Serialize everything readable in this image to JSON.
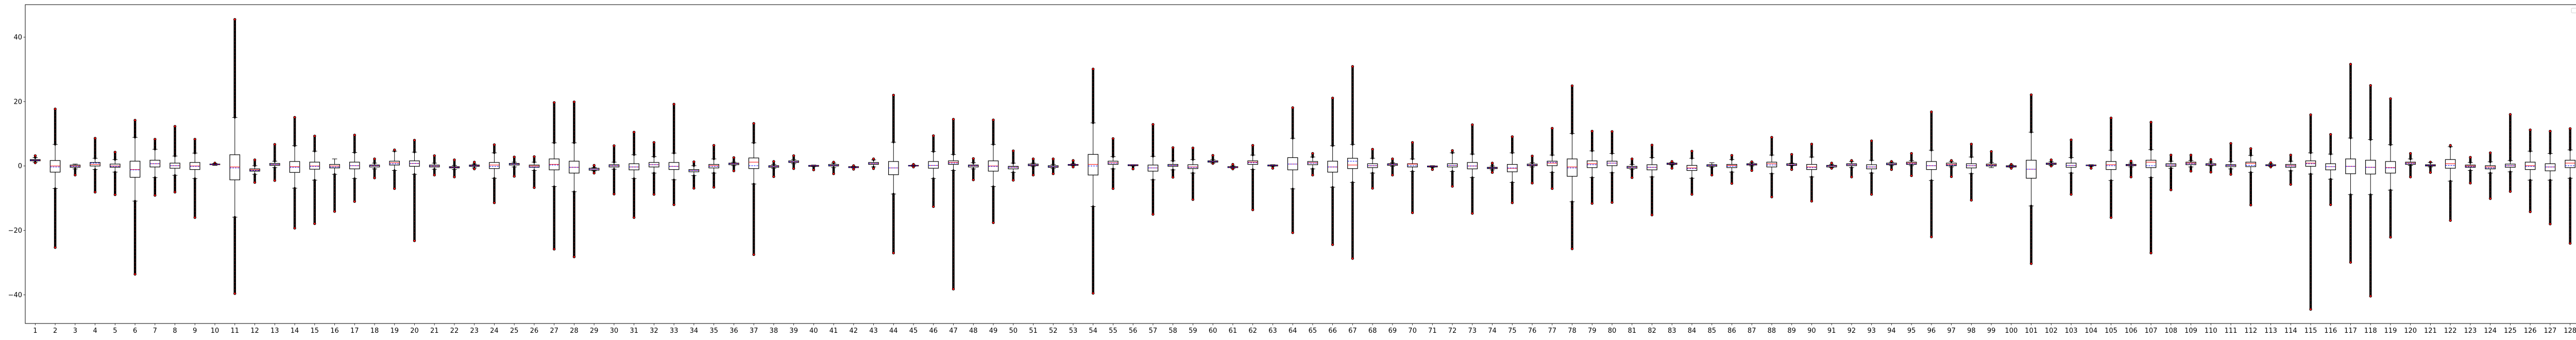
{
  "chart_data": {
    "type": "box",
    "title": "",
    "xlabel": "",
    "ylabel": "",
    "ylim": [
      -48.9,
      50.1
    ],
    "xlim": [
      0.5,
      128.5
    ],
    "yticks": [
      -40,
      -20,
      0,
      20,
      40
    ],
    "ytick_labels": [
      "−40",
      "−20",
      "0",
      "20",
      "40"
    ],
    "grid": false,
    "legend": {
      "placement": "top-right",
      "entries": []
    },
    "colors": {
      "box": "#000000",
      "median": "#ff0000",
      "mean": "#0000ff",
      "flier_edge": "#000000",
      "flier_face": "#ff0000"
    },
    "fields": [
      "min",
      "whisker_low",
      "q1",
      "median",
      "mean",
      "q3",
      "whisker_high",
      "max"
    ],
    "categories": [
      "1",
      "2",
      "3",
      "4",
      "5",
      "6",
      "7",
      "8",
      "9",
      "10",
      "11",
      "12",
      "13",
      "14",
      "15",
      "16",
      "17",
      "18",
      "19",
      "20",
      "21",
      "22",
      "23",
      "24",
      "25",
      "26",
      "27",
      "28",
      "29",
      "30",
      "31",
      "32",
      "33",
      "34",
      "35",
      "36",
      "37",
      "38",
      "39",
      "40",
      "41",
      "42",
      "43",
      "44",
      "45",
      "46",
      "47",
      "48",
      "49",
      "50",
      "51",
      "52",
      "53",
      "54",
      "55",
      "56",
      "57",
      "58",
      "59",
      "60",
      "61",
      "62",
      "63",
      "64",
      "65",
      "66",
      "67",
      "68",
      "69",
      "70",
      "71",
      "72",
      "73",
      "74",
      "75",
      "76",
      "77",
      "78",
      "79",
      "80",
      "81",
      "82",
      "83",
      "84",
      "85",
      "86",
      "87",
      "88",
      "89",
      "90",
      "91",
      "92",
      "93",
      "94",
      "95",
      "96",
      "97",
      "98",
      "99",
      "100",
      "101",
      "102",
      "103",
      "104",
      "105",
      "106",
      "107",
      "108",
      "109",
      "110",
      "111",
      "112",
      "113",
      "114",
      "115",
      "116",
      "117",
      "118",
      "119",
      "120",
      "121",
      "122",
      "123",
      "124",
      "125",
      "126",
      "127",
      "128"
    ],
    "boxes": [
      [
        1.0,
        1.2,
        1.6,
        1.8,
        1.8,
        2.0,
        2.6,
        3.2
      ],
      [
        -25.3,
        -7.0,
        -1.9,
        0,
        -0.3,
        1.7,
        6.7,
        17.7
      ],
      [
        -2.8,
        -0.9,
        -0.4,
        0,
        -0.1,
        0.3,
        0.6,
        0.6
      ],
      [
        -8.1,
        -1.1,
        0,
        0.5,
        0.9,
        1.1,
        2.4,
        8.6
      ],
      [
        -8.9,
        -1.9,
        -0.4,
        0,
        -0.1,
        0.6,
        2.0,
        4.3
      ],
      [
        -33.6,
        -10.9,
        -3.5,
        -1.1,
        -1.2,
        1.5,
        8.9,
        14.2
      ],
      [
        -9.1,
        -3.6,
        -0.3,
        0.7,
        0.7,
        1.8,
        5.2,
        8.3
      ],
      [
        -8.1,
        -2.9,
        -0.7,
        0.1,
        0.1,
        0.9,
        3.1,
        12.3
      ],
      [
        -16.0,
        -3.9,
        -1.1,
        0,
        -0.1,
        1.1,
        4.0,
        8.3
      ],
      [
        0.2,
        0.2,
        0.4,
        0.5,
        0.5,
        0.6,
        0.8,
        0.9
      ],
      [
        -39.6,
        -15.9,
        -4.3,
        -0.3,
        -0.6,
        3.5,
        15.1,
        45.5
      ],
      [
        -5.1,
        -2.6,
        -1.6,
        -1.2,
        -1.4,
        -0.9,
        0.1,
        1.9
      ],
      [
        -4.5,
        -0.5,
        0.2,
        0.5,
        0.5,
        0.8,
        1.5,
        6.7
      ],
      [
        -19.3,
        -6.9,
        -2.0,
        -0.2,
        -0.4,
        1.4,
        6.3,
        15.1
      ],
      [
        -17.9,
        -4.4,
        -1.0,
        0,
        -0.1,
        1.2,
        4.6,
        9.3
      ],
      [
        -14.1,
        -2.6,
        -0.6,
        0,
        -0.3,
        0.5,
        2.2,
        2.2
      ],
      [
        -11.0,
        -3.9,
        -0.9,
        0.1,
        0.1,
        1.2,
        4.2,
        9.6
      ],
      [
        -3.7,
        -0.9,
        -0.3,
        0.1,
        0.1,
        0.3,
        0.9,
        2.2
      ],
      [
        -7.0,
        -1.4,
        0.3,
        1.0,
        0.7,
        1.5,
        4.6,
        5.0
      ],
      [
        -23.2,
        -2.6,
        -0.1,
        0.8,
        0.8,
        1.6,
        4.3,
        8.0
      ],
      [
        -2.8,
        -1.0,
        -0.3,
        0,
        0,
        0.3,
        0.9,
        3.2
      ],
      [
        -3.4,
        -1.1,
        -0.6,
        -0.4,
        -0.4,
        -0.2,
        0.2,
        1.9
      ],
      [
        -0.9,
        -0.6,
        -0.1,
        0.1,
        0.1,
        0.3,
        0.6,
        1.2
      ],
      [
        -11.4,
        -3.8,
        -0.8,
        0.3,
        -0.1,
        1.1,
        4.1,
        6.6
      ],
      [
        -3.2,
        -0.3,
        0.3,
        0.6,
        0.6,
        0.8,
        1.2,
        2.8
      ],
      [
        -6.7,
        -1.4,
        -0.4,
        0,
        -0.3,
        0.3,
        1.2,
        2.9
      ],
      [
        -25.8,
        -6.4,
        -1.2,
        0.5,
        0.3,
        2.2,
        7.2,
        19.7
      ],
      [
        -28.2,
        -8.0,
        -2.2,
        -0.4,
        -0.4,
        1.5,
        7.2,
        19.9
      ],
      [
        -2.2,
        -1.5,
        -1.3,
        -1.0,
        -1.0,
        -0.7,
        -0.5,
        0.2
      ],
      [
        -8.7,
        -1.0,
        -0.3,
        0.1,
        0.1,
        0.4,
        1.2,
        6.3
      ],
      [
        -16.0,
        -3.9,
        -1.2,
        -0.3,
        -0.3,
        0.7,
        3.5,
        10.5
      ],
      [
        -8.8,
        -2.2,
        -0.3,
        0.4,
        0.4,
        1.1,
        2.9,
        7.3
      ],
      [
        -12.0,
        -4.3,
        -1.1,
        -0.1,
        -0.1,
        1.1,
        4.0,
        19.2
      ],
      [
        -6.9,
        -3.0,
        -1.8,
        -1.4,
        -1.4,
        -1.1,
        0.1,
        1.3
      ],
      [
        -6.6,
        -2.2,
        -0.6,
        0.1,
        -0.1,
        0.5,
        2.2,
        6.4
      ],
      [
        -1.5,
        0.1,
        0.4,
        0.7,
        0.7,
        0.9,
        1.2,
        2.6
      ],
      [
        -27.5,
        -5.6,
        -0.8,
        1.2,
        0.1,
        2.5,
        7.2,
        13.2
      ],
      [
        -3.3,
        -0.7,
        -0.4,
        -0.1,
        -0.1,
        0.1,
        0.5,
        1.4
      ],
      [
        -0.8,
        0.7,
        1.1,
        1.3,
        1.3,
        1.6,
        2.0,
        3.2
      ],
      [
        -1.2,
        -0.2,
        -0.1,
        0.1,
        0.1,
        0.2,
        0.3,
        0.3
      ],
      [
        -2.4,
        -0.5,
        0,
        0.2,
        0.2,
        0.5,
        0.9,
        1.2
      ],
      [
        -1.0,
        -0.6,
        -0.5,
        -0.4,
        -0.4,
        -0.2,
        -0.1,
        0.1
      ],
      [
        -0.8,
        -0.3,
        0.5,
        0.8,
        0.8,
        1.1,
        1.9,
        2.2
      ],
      [
        -27.0,
        -8.7,
        -2.7,
        -0.6,
        -0.6,
        1.4,
        7.4,
        22.0
      ],
      [
        -0.3,
        -0.1,
        0,
        0.1,
        0.1,
        0.2,
        0.3,
        0.5
      ],
      [
        -12.6,
        -3.9,
        -0.7,
        0.2,
        0.2,
        1.4,
        4.5,
        9.4
      ],
      [
        -38.2,
        -1.4,
        0.5,
        1.1,
        0.9,
        1.6,
        3.6,
        14.5
      ],
      [
        -4.3,
        -0.9,
        -0.3,
        0.1,
        0.1,
        0.3,
        1.0,
        2.3
      ],
      [
        -17.6,
        -6.4,
        -1.6,
        0,
        -0.1,
        1.6,
        6.7,
        14.3
      ],
      [
        -4.4,
        -2.0,
        -0.9,
        -0.4,
        -0.4,
        -0.1,
        0.9,
        4.7
      ],
      [
        -2.8,
        -0.2,
        0.1,
        0.3,
        0.3,
        0.6,
        0.9,
        2.2
      ],
      [
        -2.4,
        -0.8,
        -0.4,
        -0.2,
        -0.2,
        0.1,
        0.5,
        2.2
      ],
      [
        -0.3,
        0.1,
        0.2,
        0.4,
        0.4,
        0.5,
        0.7,
        1.7
      ],
      [
        -39.5,
        -12.6,
        -2.8,
        0.5,
        0,
        3.6,
        13.4,
        30.1
      ],
      [
        -7.0,
        -0.9,
        0.5,
        1.0,
        0.9,
        1.5,
        2.9,
        8.5
      ],
      [
        -0.9,
        0,
        0.1,
        0.3,
        0.3,
        0.4,
        0.4,
        0.4
      ],
      [
        -15.0,
        -4.3,
        -1.6,
        -0.6,
        -0.6,
        0.3,
        3.0,
        12.9
      ],
      [
        -3.5,
        -1.2,
        -0.1,
        0.2,
        0.2,
        0.5,
        1.6,
        5.7
      ],
      [
        -10.4,
        -2.2,
        -0.8,
        -0.3,
        -0.4,
        0.4,
        2.0,
        5.6
      ],
      [
        0.8,
        0.9,
        1.2,
        1.4,
        1.4,
        1.6,
        2.0,
        3.3
      ],
      [
        -0.9,
        -0.7,
        -0.5,
        -0.4,
        -0.4,
        -0.2,
        0,
        0.5
      ],
      [
        -13.6,
        -1.1,
        0.5,
        1.2,
        1.0,
        1.6,
        3.4,
        6.4
      ],
      [
        -0.7,
        -0.1,
        0,
        0.2,
        0.2,
        0.3,
        0.4,
        0.4
      ],
      [
        -20.7,
        -7.1,
        -1.2,
        0.6,
        0.6,
        2.6,
        8.6,
        18.1
      ],
      [
        -2.8,
        -0.9,
        0.4,
        1.0,
        0.9,
        1.4,
        2.8,
        3.9
      ],
      [
        -24.4,
        -6.6,
        -1.9,
        -0.3,
        -0.3,
        1.5,
        6.3,
        21.1
      ],
      [
        -28.7,
        -5.1,
        -0.8,
        0.3,
        1.5,
        2.4,
        6.7,
        30.9
      ],
      [
        -6.9,
        -2.2,
        -0.5,
        0.1,
        0.1,
        0.7,
        2.4,
        5.2
      ],
      [
        -2.8,
        -0.1,
        0.2,
        0.5,
        0.5,
        0.7,
        1.0,
        2.2
      ],
      [
        -14.5,
        -1.7,
        -0.3,
        0.6,
        0.1,
        0.7,
        2.2,
        7.3
      ],
      [
        -1.1,
        -0.4,
        -0.3,
        -0.1,
        -0.1,
        0,
        0.1,
        0.1
      ],
      [
        -6.3,
        -1.7,
        -0.3,
        0.2,
        0.2,
        0.7,
        4.1,
        4.8
      ],
      [
        -14.7,
        -3.6,
        -0.9,
        0,
        0,
        1.1,
        3.7,
        12.8
      ],
      [
        -2.0,
        -1.2,
        -0.8,
        -0.6,
        -0.6,
        -0.4,
        0,
        0.9
      ],
      [
        -11.4,
        -5.1,
        -1.8,
        -0.7,
        -0.6,
        0.5,
        4.1,
        9.1
      ],
      [
        -5.3,
        -0.3,
        0.1,
        0.3,
        0.3,
        0.6,
        1.0,
        3.1
      ],
      [
        -7.0,
        -2.0,
        0.1,
        0.9,
        1.1,
        1.5,
        3.4,
        11.7
      ],
      [
        -25.7,
        -11.1,
        -3.2,
        -0.3,
        -0.6,
        2.2,
        10.1,
        24.9
      ],
      [
        -11.6,
        -3.6,
        -0.5,
        0.7,
        0.4,
        1.6,
        4.7,
        10.8
      ],
      [
        -11.3,
        -2.1,
        0.1,
        0.9,
        0.9,
        1.5,
        3.9,
        10.7
      ],
      [
        -3.6,
        -1.1,
        -0.7,
        -0.4,
        -0.4,
        -0.1,
        0.5,
        2.2
      ],
      [
        -15.2,
        -3.4,
        -1.2,
        -0.4,
        -0.4,
        0.4,
        2.6,
        6.5
      ],
      [
        -0.7,
        0.3,
        0.5,
        0.7,
        0.7,
        0.9,
        1.1,
        1.4
      ],
      [
        -8.8,
        -3.8,
        -1.4,
        -0.6,
        -0.8,
        0.2,
        2.4,
        4.6
      ],
      [
        -2.8,
        -0.4,
        -0.1,
        0.2,
        0.2,
        0.4,
        1.0,
        1.0
      ],
      [
        -5.4,
        -1.9,
        -0.5,
        0.2,
        -0.1,
        0.5,
        2.0,
        3.3
      ],
      [
        -1.4,
        0,
        0.3,
        0.5,
        0.5,
        0.7,
        1.1,
        1.3
      ],
      [
        -9.6,
        -2.4,
        -0.3,
        0.7,
        0.3,
        1.2,
        3.4,
        8.9
      ],
      [
        -1.1,
        0.1,
        0.2,
        0.4,
        0.4,
        0.7,
        0.9,
        3.6
      ],
      [
        -10.9,
        -3.4,
        -1.1,
        -0.3,
        -0.5,
        0.5,
        2.8,
        6.8
      ],
      [
        -0.7,
        -0.5,
        -0.3,
        0,
        0,
        0.2,
        0.5,
        0.9
      ],
      [
        -3.4,
        -0.5,
        0.1,
        0.4,
        0.4,
        0.7,
        1.4,
        1.7
      ],
      [
        -8.8,
        -2.2,
        -0.9,
        -0.3,
        -0.3,
        0.4,
        1.8,
        7.8
      ],
      [
        -1.1,
        0.1,
        0.4,
        0.6,
        0.6,
        0.9,
        1.2,
        1.4
      ],
      [
        -3.0,
        0.1,
        0.5,
        0.9,
        0.7,
        1.2,
        1.7,
        3.9
      ],
      [
        -22.0,
        -4.5,
        -1.1,
        0.1,
        0.1,
        1.4,
        4.9,
        16.8
      ],
      [
        -3.3,
        -0.3,
        0.1,
        0.5,
        0.3,
        0.9,
        1.4,
        1.7
      ],
      [
        -10.6,
        -2.4,
        -0.6,
        0.1,
        0.1,
        0.7,
        2.8,
        6.8
      ],
      [
        -0.5,
        -0.5,
        0,
        0.3,
        0.2,
        0.6,
        1.1,
        4.5
      ],
      [
        -0.7,
        -0.4,
        -0.3,
        -0.1,
        -0.1,
        0.1,
        0.3,
        0.5
      ],
      [
        -30.3,
        -12.4,
        -3.8,
        -1.0,
        -1.0,
        1.8,
        10.5,
        22.1
      ],
      [
        0,
        0.2,
        0.5,
        0.7,
        0.7,
        0.9,
        1.3,
        1.9
      ],
      [
        -8.8,
        -2.2,
        -0.4,
        0.2,
        0.2,
        0.9,
        2.6,
        8.1
      ],
      [
        -0.7,
        -0.1,
        0.1,
        0.2,
        0.2,
        0.3,
        0.4,
        0.4
      ],
      [
        -16.0,
        -4.5,
        -1.1,
        0.4,
        0.1,
        1.4,
        4.9,
        14.9
      ],
      [
        -3.4,
        -0.3,
        0.1,
        0.3,
        0.3,
        0.5,
        0.9,
        1.5
      ],
      [
        -27.0,
        -3.6,
        -0.5,
        1.2,
        0.1,
        1.8,
        5.1,
        13.6
      ],
      [
        -7.4,
        -0.7,
        -0.1,
        0.3,
        0.3,
        0.7,
        1.5,
        3.4
      ],
      [
        -1.6,
        -0.3,
        0.4,
        0.9,
        0.7,
        1.2,
        1.7,
        3.4
      ],
      [
        -1.9,
        0,
        0.2,
        0.5,
        0.5,
        0.7,
        1.2,
        2.0
      ],
      [
        -2.6,
        -0.9,
        -0.2,
        0.2,
        0.2,
        0.4,
        1.4,
        7.0
      ],
      [
        -12.1,
        -2.0,
        -0.2,
        0.8,
        0.2,
        1.2,
        3.3,
        5.4
      ],
      [
        -0.3,
        -0.1,
        0.1,
        0.2,
        0.2,
        0.4,
        0.7,
        1.0
      ],
      [
        -5.7,
        -1.5,
        -0.4,
        0.1,
        0,
        0.5,
        1.5,
        3.4
      ],
      [
        -44.5,
        -2.5,
        -0.1,
        0.9,
        0.7,
        1.6,
        4.1,
        15.9
      ],
      [
        -12.0,
        -4.1,
        -1.2,
        -0.2,
        -0.2,
        0.7,
        3.7,
        9.8
      ],
      [
        -29.9,
        -8.9,
        -2.4,
        -0.1,
        -0.1,
        2.2,
        8.7,
        31.6
      ],
      [
        -40.4,
        -8.9,
        -2.5,
        -0.4,
        -0.4,
        1.8,
        8.2,
        25.0
      ],
      [
        -22.1,
        -7.5,
        -2.2,
        -0.5,
        -0.6,
        1.4,
        6.6,
        20.9
      ],
      [
        -3.4,
        0.2,
        0.5,
        0.9,
        0.8,
        1.2,
        2.2,
        3.9
      ],
      [
        -2.0,
        -0.3,
        0,
        0.2,
        0.2,
        0.4,
        1.1,
        1.2
      ],
      [
        -16.9,
        -4.7,
        -0.7,
        0.7,
        0.2,
        2.0,
        6.0,
        6.4
      ],
      [
        -5.3,
        -1.4,
        -0.4,
        0,
        -0.2,
        0.3,
        1.1,
        2.7
      ],
      [
        -10.1,
        -2.2,
        -0.9,
        -0.3,
        -0.6,
        0.1,
        1.3,
        4.1
      ],
      [
        -7.9,
        -1.8,
        -0.4,
        0.1,
        0.1,
        0.6,
        1.7,
        16.0
      ],
      [
        -14.2,
        -4.4,
        -1.1,
        0.1,
        -0.1,
        1.2,
        4.6,
        11.2
      ],
      [
        -18.0,
        -4.4,
        -1.5,
        -0.3,
        -0.3,
        0.7,
        3.9,
        10.8
      ],
      [
        -24.0,
        -3.8,
        -0.5,
        0.9,
        0.1,
        1.8,
        5.0,
        11.6
      ]
    ]
  }
}
